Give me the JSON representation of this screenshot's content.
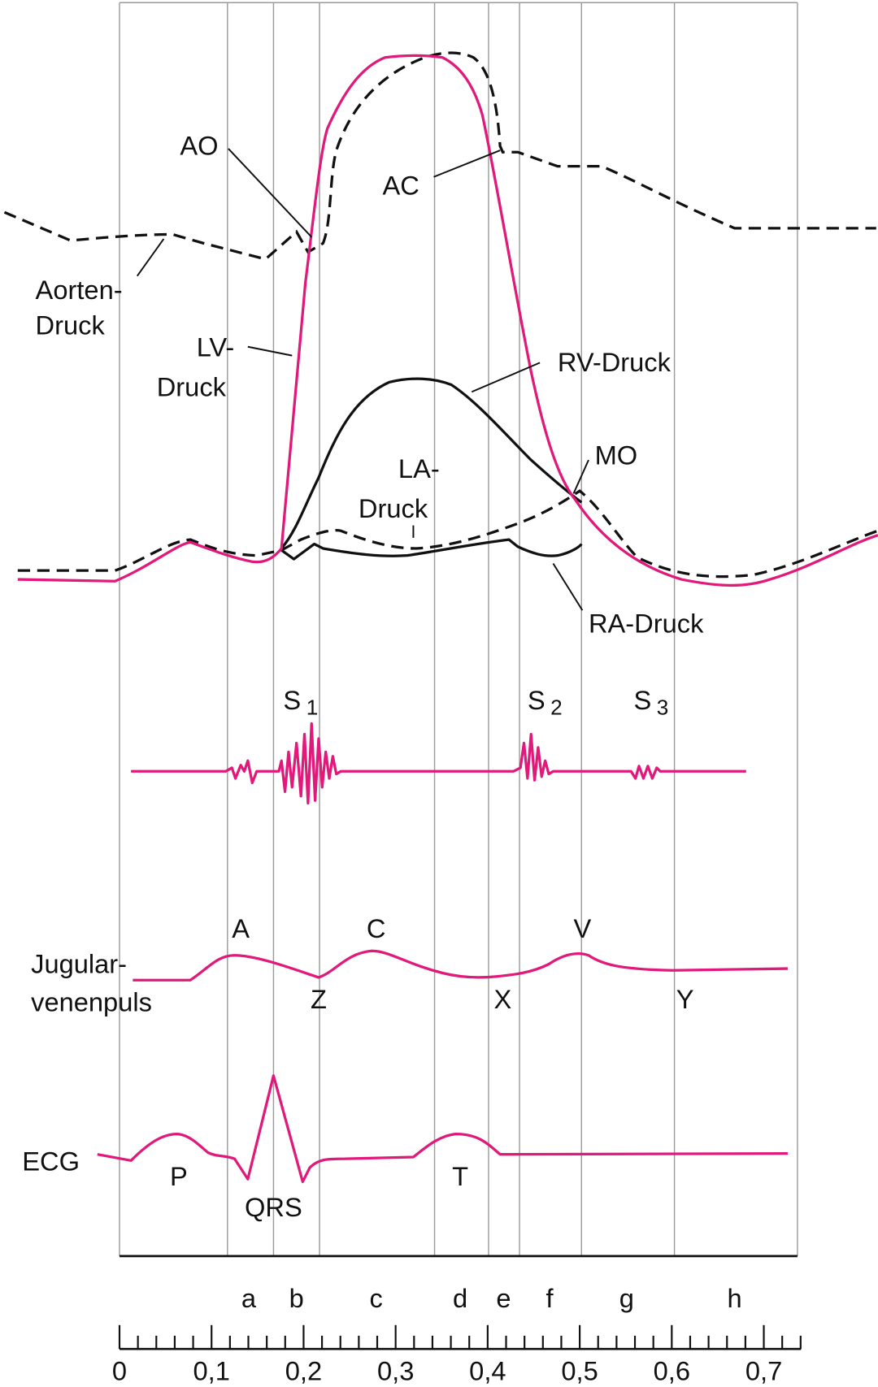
{
  "pressure_labels": [
    "AO",
    "AC",
    "Aorten-",
    "Druck",
    "LV-",
    "Druck",
    "RV-Druck",
    "LA-",
    "Druck",
    "MO",
    "RA-Druck",
    "Jugular-",
    "venenpuls",
    "ECG"
  ],
  "heart_sounds": [
    {
      "symbol": "S",
      "subscript": "1"
    },
    {
      "symbol": "S",
      "subscript": "2"
    },
    {
      "symbol": "S",
      "subscript": "3"
    }
  ],
  "jugular_waves": [
    "A",
    "C",
    "V",
    "Z",
    "X",
    "Y"
  ],
  "ecg_waves": [
    "P",
    "QRS",
    "T"
  ],
  "phases": [
    "a",
    "b",
    "c",
    "d",
    "e",
    "f",
    "g",
    "h"
  ],
  "time_axis": {
    "tick_labels": [
      "0",
      "0,1",
      "0,2",
      "0,3",
      "0,4",
      "0,5",
      "0,6",
      "0,7"
    ]
  }
}
